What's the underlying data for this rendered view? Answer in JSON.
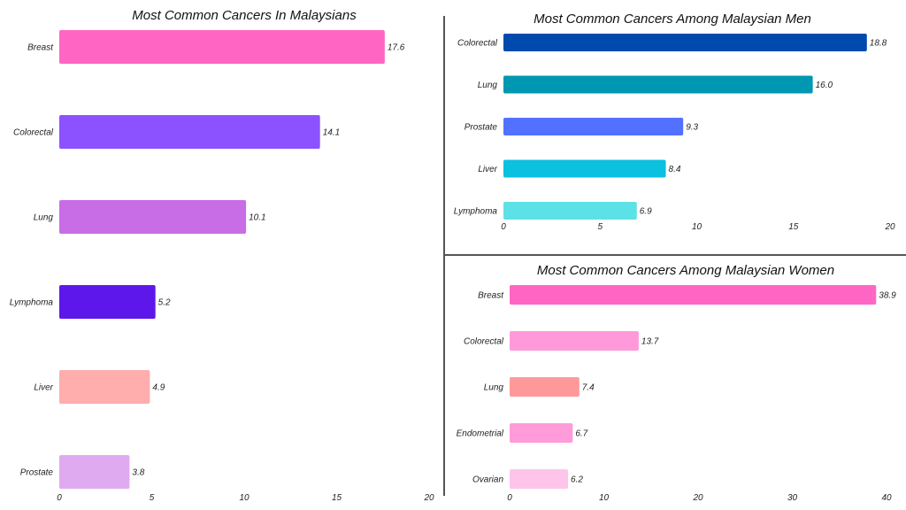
{
  "chart_data": [
    {
      "type": "bar",
      "orientation": "horizontal",
      "title": "Most Common Cancers In Malaysians",
      "categories": [
        "Breast",
        "Colorectal",
        "Lung",
        "Lymphoma",
        "Liver",
        "Prostate"
      ],
      "values": [
        17.6,
        14.1,
        10.1,
        5.2,
        4.9,
        3.8
      ],
      "value_labels": [
        "17.6",
        "14.1",
        "10.1",
        "5.2",
        "4.9",
        "3.8"
      ],
      "colors": [
        "#FF66C4",
        "#8C52FF",
        "#C86DE6",
        "#5E17EB",
        "#FFADAD",
        "#E0AAF0"
      ],
      "xlim": [
        0,
        20
      ],
      "xticks": [
        "0",
        "5",
        "10",
        "15",
        "20"
      ],
      "grid": false
    },
    {
      "type": "bar",
      "orientation": "horizontal",
      "title": "Most Common Cancers Among Malaysian Men",
      "categories": [
        "Colorectal",
        "Lung",
        "Prostate",
        "Liver",
        "Lymphoma"
      ],
      "values": [
        18.8,
        16.0,
        9.3,
        8.4,
        6.9
      ],
      "value_labels": [
        "18.8",
        "16.0",
        "9.3",
        "8.4",
        "6.9"
      ],
      "colors": [
        "#004AAD",
        "#0097B2",
        "#5271FF",
        "#0CC0DF",
        "#5CE1E6"
      ],
      "xlim": [
        0,
        20
      ],
      "xticks": [
        "0",
        "5",
        "10",
        "15",
        "20"
      ],
      "grid": false
    },
    {
      "type": "bar",
      "orientation": "horizontal",
      "title": "Most Common Cancers Among Malaysian Women",
      "categories": [
        "Breast",
        "Colorectal",
        "Lung",
        "Endometrial",
        "Ovarian"
      ],
      "values": [
        38.9,
        13.7,
        7.4,
        6.7,
        6.2
      ],
      "value_labels": [
        "38.9",
        "13.7",
        "7.4",
        "6.7",
        "6.2"
      ],
      "colors": [
        "#FF66C4",
        "#FF99DA",
        "#FF9999",
        "#FF9BD9",
        "#FFC4EA"
      ],
      "xlim": [
        0,
        40
      ],
      "xticks": [
        "0",
        "10",
        "20",
        "30",
        "40"
      ],
      "grid": false
    }
  ]
}
